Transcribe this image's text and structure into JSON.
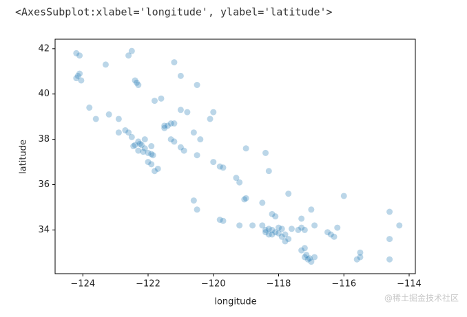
{
  "header": {
    "text": "<AxesSubplot:xlabel='longitude', ylabel='latitude'>"
  },
  "watermark": "@稀土掘金技术社区",
  "chart_data": {
    "type": "scatter",
    "xlabel": "longitude",
    "ylabel": "latitude",
    "color": "#1f77b4",
    "xlim": [
      -124.85,
      -113.81
    ],
    "ylim": [
      32.07,
      42.42
    ],
    "xticks": [
      {
        "value": -124,
        "label": "−124"
      },
      {
        "value": -122,
        "label": "−122"
      },
      {
        "value": -120,
        "label": "−120"
      },
      {
        "value": -118,
        "label": "−118"
      },
      {
        "value": -116,
        "label": "−116"
      },
      {
        "value": -114,
        "label": "−114"
      }
    ],
    "yticks": [
      34,
      36,
      38,
      40,
      42
    ],
    "x": [
      -124.2,
      -124.1,
      -124.15,
      -124.1,
      -124.05,
      -124.2,
      -123.8,
      -123.2,
      -122.4,
      -122.3,
      -122.35,
      -121.8,
      -121.6,
      -122.9,
      -122.7,
      -122.6,
      -122.5,
      -122.3,
      -122.25,
      -122.2,
      -122.4,
      -122.45,
      -122.1,
      -122.0,
      -121.9,
      -121.85,
      -122.3,
      -122.15,
      -122.0,
      -121.8,
      -121.7,
      -121.9,
      -121.5,
      -121.4,
      -121.3,
      -121.2,
      -121.5,
      -121.3,
      -121.0,
      -120.9,
      -120.5,
      -120.0,
      -119.8,
      -119.7,
      -119.3,
      -119.2,
      -119.0,
      -119.05,
      -120.6,
      -120.5,
      -119.7,
      -119.8,
      -119.2,
      -118.8,
      -118.5,
      -118.4,
      -118.3,
      -118.2,
      -118.1,
      -118.2,
      -118.0,
      -117.9,
      -117.8,
      -117.7,
      -117.6,
      -117.4,
      -117.3,
      -117.2,
      -118.3,
      -118.4,
      -117.2,
      -117.1,
      -117.05,
      -117.15,
      -117.0,
      -117.3,
      -117.2,
      -116.9,
      -116.4,
      -116.3,
      -116.5,
      -115.5,
      -115.6,
      -115.5,
      -116.9,
      -117.0,
      -117.3,
      -118.1,
      -118.2,
      -114.6,
      -114.3,
      -114.6,
      -114.6,
      -116.0,
      -117.7,
      -118.3,
      -118.4,
      -119.0,
      -120.0,
      -120.1,
      -120.8,
      -120.6,
      -120.4,
      -121.0,
      -120.5,
      -121.2,
      -122.6,
      -123.3,
      -122.5,
      -121.0,
      -123.6,
      -122.9,
      -118.5,
      -116.2,
      -117.8,
      -118.0,
      -117.9,
      -121.9,
      -122.1,
      -121.2
    ],
    "y": [
      41.8,
      41.7,
      40.8,
      40.9,
      40.6,
      40.7,
      39.4,
      39.1,
      40.6,
      40.4,
      40.5,
      39.7,
      39.8,
      38.9,
      38.4,
      38.3,
      38.1,
      37.9,
      37.8,
      37.75,
      37.75,
      37.7,
      37.6,
      37.4,
      37.35,
      37.3,
      37.5,
      37.45,
      37.0,
      36.6,
      36.7,
      36.9,
      38.6,
      38.6,
      38.7,
      38.7,
      38.5,
      38.0,
      37.65,
      37.5,
      37.3,
      37.0,
      36.8,
      36.75,
      36.3,
      36.1,
      35.4,
      35.35,
      35.3,
      34.9,
      34.4,
      34.45,
      34.2,
      34.2,
      34.2,
      34.0,
      34.05,
      34.0,
      33.9,
      33.8,
      33.85,
      33.7,
      33.8,
      33.6,
      34.05,
      34.0,
      34.1,
      34.0,
      33.8,
      33.9,
      32.8,
      32.7,
      32.75,
      32.9,
      32.6,
      33.1,
      33.2,
      32.8,
      33.8,
      33.7,
      33.9,
      32.8,
      32.7,
      33.0,
      34.2,
      34.9,
      34.5,
      34.6,
      34.7,
      34.8,
      34.2,
      33.6,
      32.7,
      35.5,
      35.6,
      36.6,
      37.4,
      37.6,
      39.2,
      38.9,
      39.2,
      38.3,
      38.0,
      39.3,
      40.4,
      41.4,
      41.7,
      41.3,
      41.9,
      40.8,
      38.9,
      38.3,
      35.2,
      34.1,
      33.5,
      34.1,
      34.05,
      37.7,
      38.0,
      37.9
    ]
  }
}
